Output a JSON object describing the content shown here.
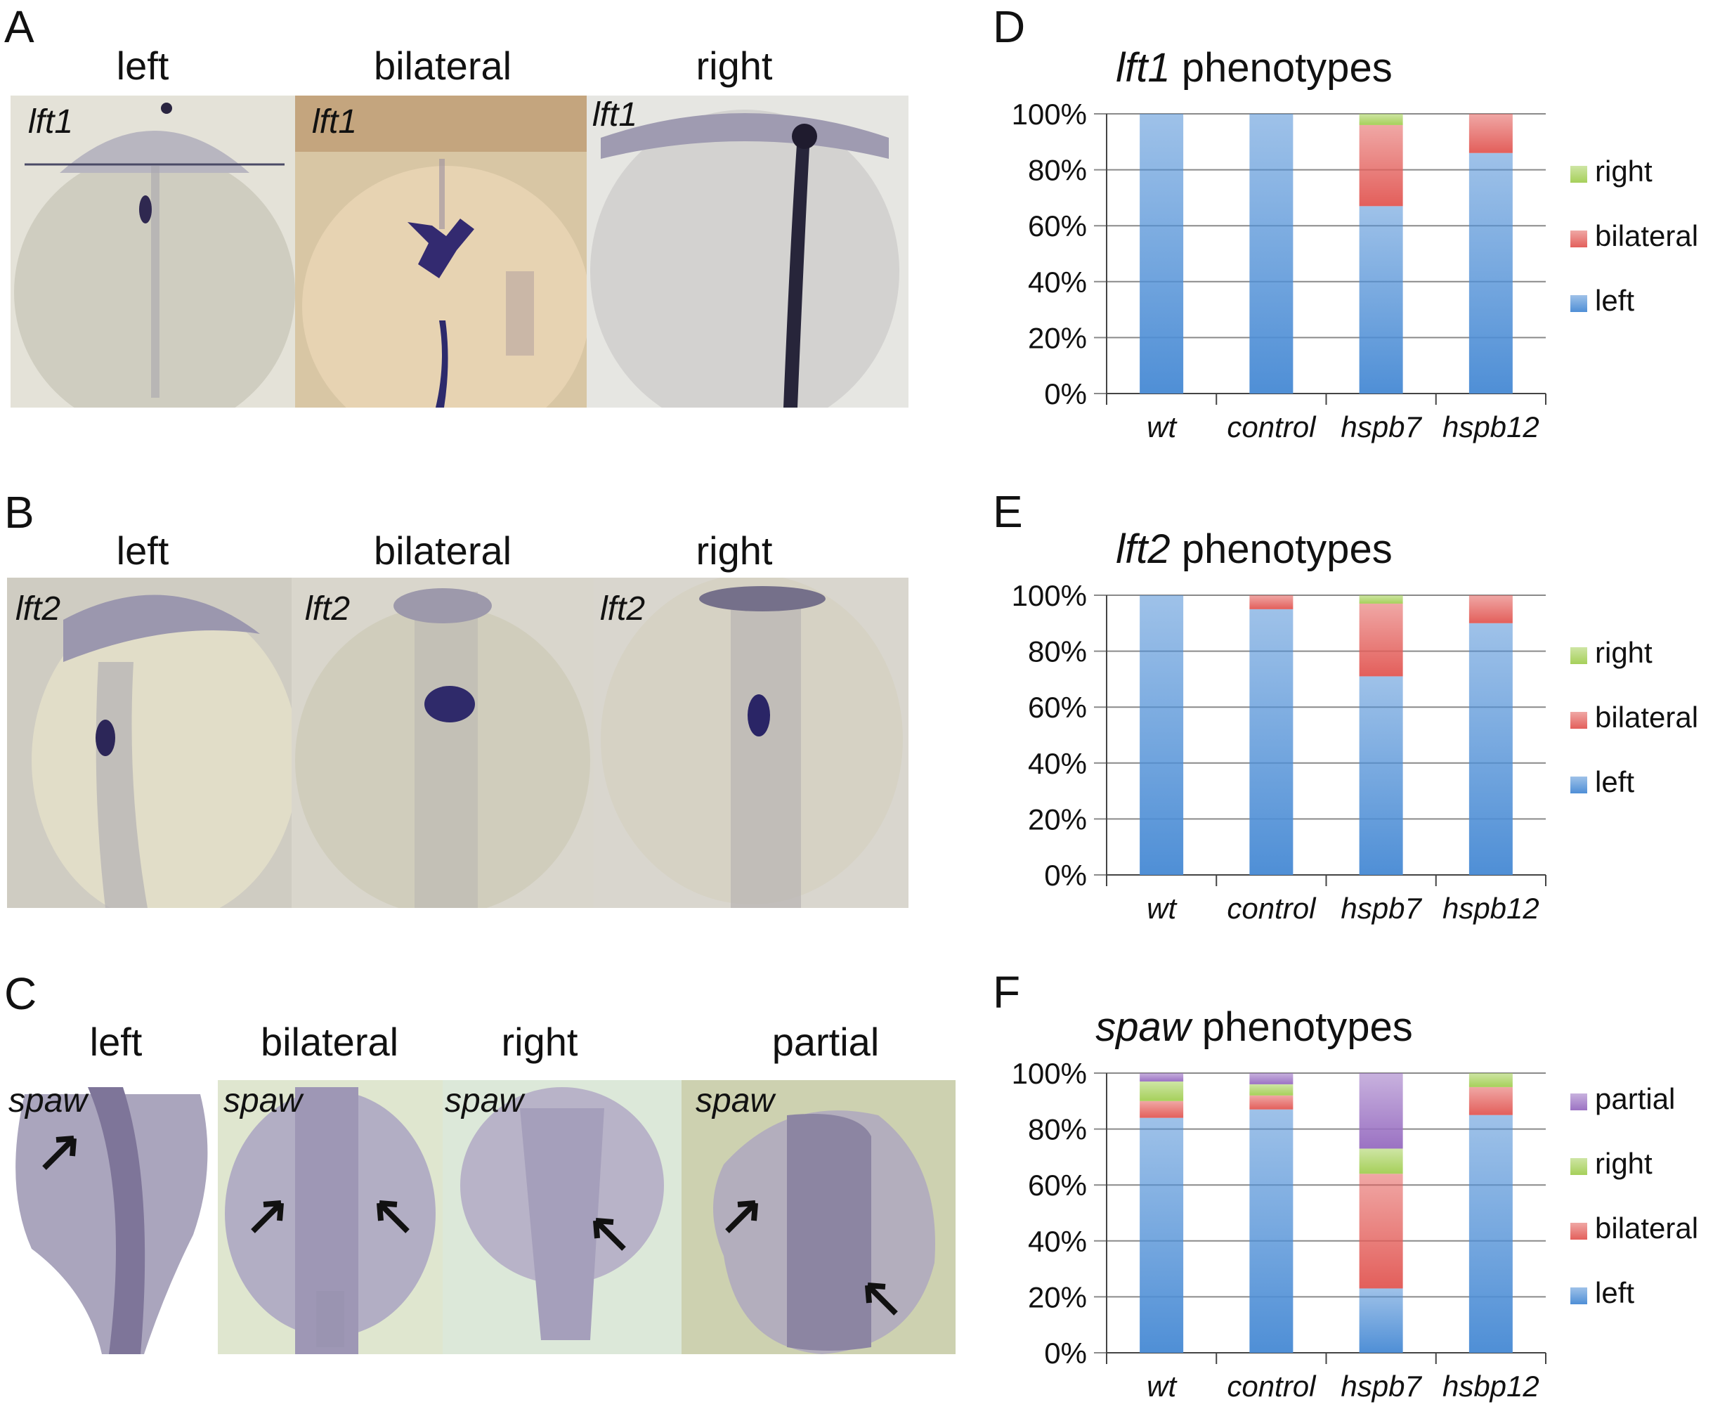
{
  "panels_images": [
    {
      "letter": "A",
      "gene": "lft1",
      "conditions": [
        "left",
        "bilateral",
        "right"
      ]
    },
    {
      "letter": "B",
      "gene": "lft2",
      "conditions": [
        "left",
        "bilateral",
        "right"
      ]
    },
    {
      "letter": "C",
      "gene": "spaw",
      "conditions": [
        "left",
        "bilateral",
        "right",
        "partial"
      ]
    }
  ],
  "chart_data": [
    {
      "letter": "D",
      "type": "bar",
      "stacked": true,
      "title_gene": "lft1",
      "title_rest": " phenotypes",
      "categories": [
        "wt",
        "control",
        "hspb7",
        "hspb12"
      ],
      "ylim": [
        0,
        100
      ],
      "yticks": [
        "0%",
        "20%",
        "40%",
        "60%",
        "80%",
        "100%"
      ],
      "grid": true,
      "legend_position": "right",
      "series": [
        {
          "name": "left",
          "color": "#4f8fd6",
          "values": [
            100,
            100,
            67,
            86
          ]
        },
        {
          "name": "bilateral",
          "color": "#e35f5b",
          "values": [
            0,
            0,
            29,
            14
          ]
        },
        {
          "name": "right",
          "color": "#a6d05a",
          "values": [
            0,
            0,
            4,
            0
          ]
        }
      ]
    },
    {
      "letter": "E",
      "type": "bar",
      "stacked": true,
      "title_gene": "lft2",
      "title_rest": " phenotypes",
      "categories": [
        "wt",
        "control",
        "hspb7",
        "hspb12"
      ],
      "ylim": [
        0,
        100
      ],
      "yticks": [
        "0%",
        "20%",
        "40%",
        "60%",
        "80%",
        "100%"
      ],
      "grid": true,
      "legend_position": "right",
      "series": [
        {
          "name": "left",
          "color": "#4f8fd6",
          "values": [
            100,
            95,
            71,
            90
          ]
        },
        {
          "name": "bilateral",
          "color": "#e35f5b",
          "values": [
            0,
            5,
            26,
            10
          ]
        },
        {
          "name": "right",
          "color": "#a6d05a",
          "values": [
            0,
            0,
            3,
            0
          ]
        }
      ]
    },
    {
      "letter": "F",
      "type": "bar",
      "stacked": true,
      "title_gene": "spaw",
      "title_rest": " phenotypes",
      "categories": [
        "wt",
        "control",
        "hspb7",
        "hsbp12"
      ],
      "ylim": [
        0,
        100
      ],
      "yticks": [
        "0%",
        "20%",
        "40%",
        "60%",
        "80%",
        "100%"
      ],
      "grid": true,
      "legend_position": "right",
      "series": [
        {
          "name": "left",
          "color": "#4f8fd6",
          "values": [
            84,
            87,
            23,
            85
          ]
        },
        {
          "name": "bilateral",
          "color": "#e35f5b",
          "values": [
            6,
            5,
            41,
            10
          ]
        },
        {
          "name": "right",
          "color": "#a6d05a",
          "values": [
            7,
            4,
            9,
            5
          ]
        },
        {
          "name": "partial",
          "color": "#9b72c3",
          "values": [
            3,
            4,
            27,
            0
          ]
        }
      ]
    }
  ]
}
